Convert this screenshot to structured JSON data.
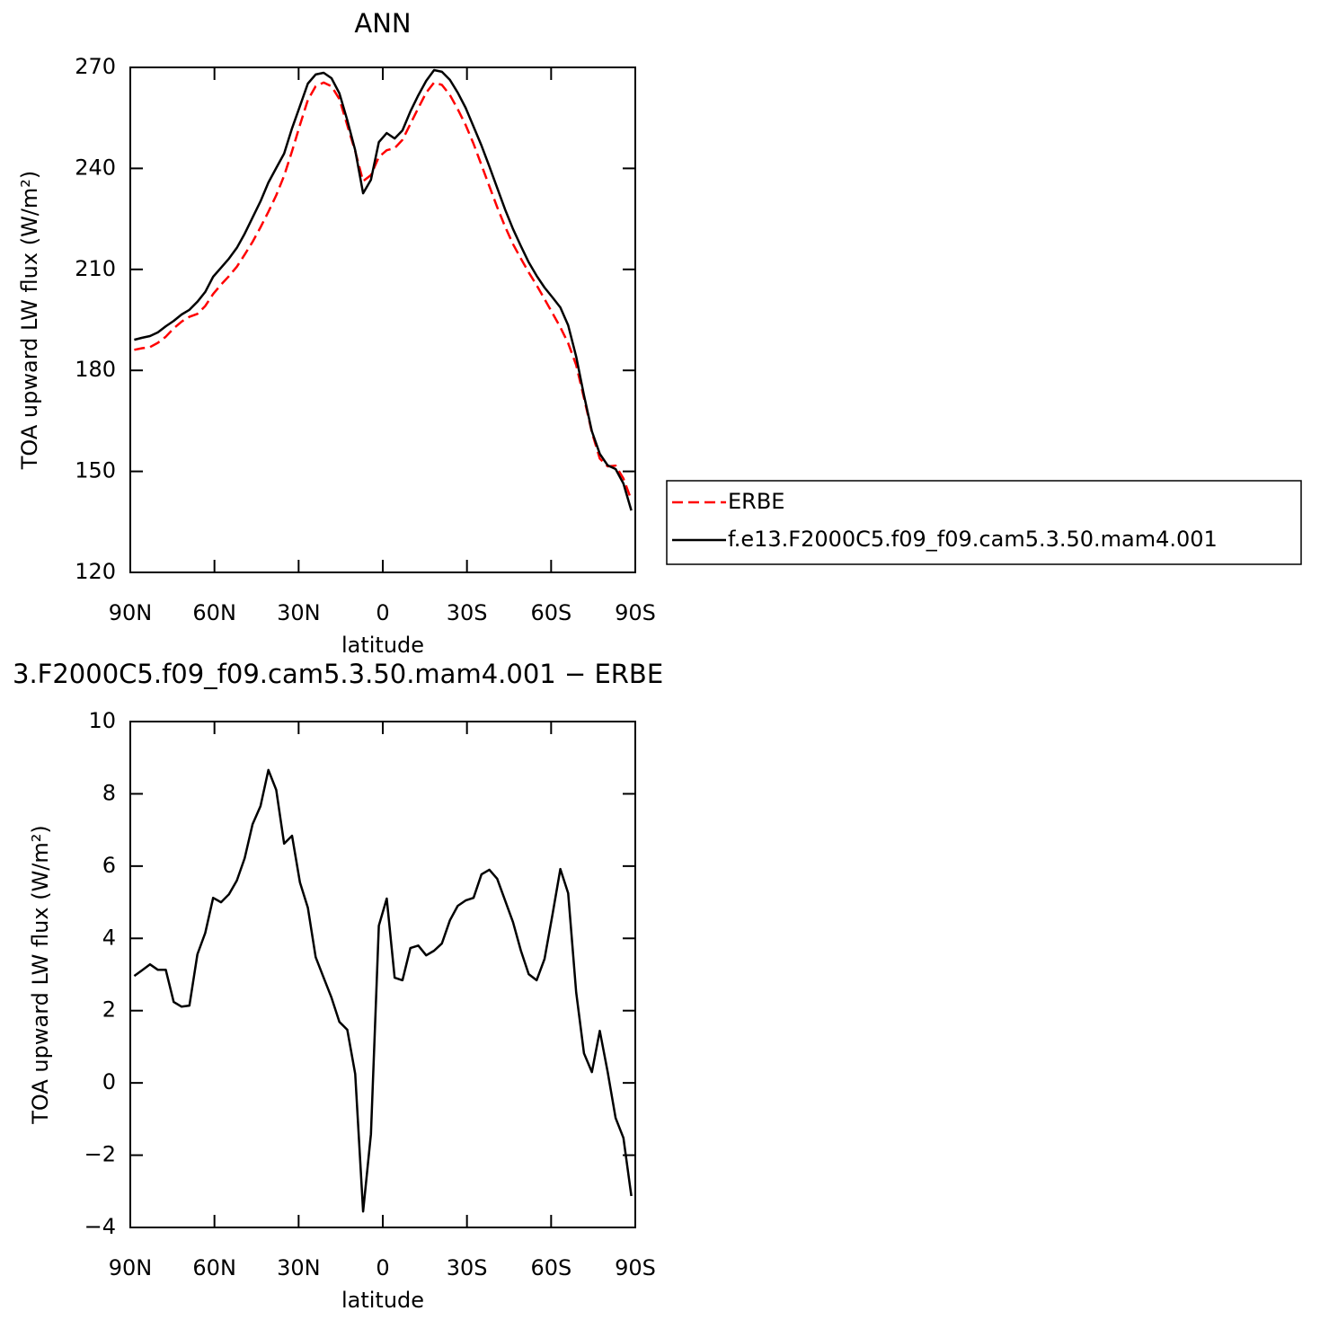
{
  "chart_data": [
    {
      "type": "line",
      "title": "ANN",
      "xlabel": "latitude",
      "ylabel": "TOA upward LW flux (W/m²)",
      "x": [
        88.59,
        85.78,
        82.97,
        80.16,
        77.34,
        74.53,
        71.72,
        68.91,
        66.09,
        63.28,
        60.47,
        57.66,
        54.84,
        52.03,
        49.22,
        46.41,
        43.59,
        40.78,
        37.97,
        35.16,
        32.34,
        29.53,
        26.72,
        23.91,
        21.09,
        18.28,
        15.47,
        12.66,
        9.84,
        7.03,
        4.22,
        1.41,
        -1.41,
        -4.22,
        -7.03,
        -9.84,
        -12.66,
        -15.47,
        -18.28,
        -21.09,
        -23.91,
        -26.72,
        -29.53,
        -32.34,
        -35.16,
        -37.97,
        -40.78,
        -43.59,
        -46.41,
        -49.22,
        -52.03,
        -54.84,
        -57.66,
        -60.47,
        -63.28,
        -66.09,
        -68.91,
        -71.72,
        -74.53,
        -77.34,
        -80.16,
        -82.97,
        -85.78,
        -88.59
      ],
      "series": [
        {
          "name": "ERBE",
          "color": "#ff0000",
          "dashed": true,
          "values": [
            186.1,
            186.6,
            186.9,
            188.2,
            190.0,
            192.5,
            194.5,
            195.9,
            196.8,
            199.1,
            202.7,
            205.5,
            208.0,
            210.8,
            214.4,
            218.2,
            222.5,
            227.1,
            232.0,
            237.8,
            245.1,
            252.9,
            260.3,
            264.4,
            265.5,
            264.4,
            260.6,
            252.8,
            245.1,
            236.2,
            238.0,
            243.4,
            245.4,
            246.0,
            248.5,
            253.2,
            257.9,
            262.5,
            265.5,
            264.8,
            261.8,
            257.6,
            252.9,
            247.3,
            241.0,
            234.7,
            228.5,
            222.7,
            217.5,
            213.2,
            209.1,
            205.3,
            201.2,
            197.0,
            192.8,
            188.1,
            181.6,
            171.8,
            161.6,
            153.8,
            151.5,
            151.7,
            147.9,
            141.5
          ]
        },
        {
          "name": "f.e13.F2000C5.f09_f09.cam5.3.50.mam4.001",
          "color": "#000000",
          "dashed": false,
          "values": [
            189.1,
            189.7,
            190.2,
            191.3,
            193.1,
            194.7,
            196.6,
            198.0,
            200.4,
            203.3,
            207.8,
            210.5,
            213.2,
            216.4,
            220.6,
            225.4,
            230.2,
            235.8,
            240.1,
            244.4,
            251.9,
            258.5,
            265.2,
            267.9,
            268.4,
            266.8,
            262.3,
            254.3,
            245.4,
            232.6,
            236.6,
            247.8,
            250.5,
            248.9,
            251.3,
            256.9,
            261.7,
            266.0,
            269.2,
            268.7,
            266.3,
            262.5,
            258.0,
            252.4,
            246.8,
            240.6,
            234.2,
            227.8,
            222.0,
            216.9,
            212.1,
            208.1,
            204.6,
            201.7,
            198.7,
            193.4,
            184.1,
            172.6,
            161.9,
            155.2,
            151.8,
            150.7,
            146.4,
            138.4
          ]
        }
      ],
      "xlim": [
        90,
        -90
      ],
      "xticks": [
        {
          "value": 90,
          "label": "90N"
        },
        {
          "value": 60,
          "label": "60N"
        },
        {
          "value": 30,
          "label": "30N"
        },
        0,
        {
          "value": -30,
          "label": "30S"
        },
        {
          "value": -60,
          "label": "60S"
        },
        {
          "value": -90,
          "label": "90S"
        }
      ],
      "ylim": [
        120,
        270
      ],
      "yticks": [
        120,
        150,
        180,
        210,
        240,
        270
      ],
      "legend": "right"
    },
    {
      "type": "line",
      "title": "3.F2000C5.f09_f09.cam5.3.50.mam4.001 − ERBE",
      "xlabel": "latitude",
      "ylabel": "TOA upward LW flux (W/m²)",
      "x": [
        88.59,
        85.78,
        82.97,
        80.16,
        77.34,
        74.53,
        71.72,
        68.91,
        66.09,
        63.28,
        60.47,
        57.66,
        54.84,
        52.03,
        49.22,
        46.41,
        43.59,
        40.78,
        37.97,
        35.16,
        32.34,
        29.53,
        26.72,
        23.91,
        21.09,
        18.28,
        15.47,
        12.66,
        9.84,
        7.03,
        4.22,
        1.41,
        -1.41,
        -4.22,
        -7.03,
        -9.84,
        -12.66,
        -15.47,
        -18.28,
        -21.09,
        -23.91,
        -26.72,
        -29.53,
        -32.34,
        -35.16,
        -37.97,
        -40.78,
        -43.59,
        -46.41,
        -49.22,
        -52.03,
        -54.84,
        -57.66,
        -60.47,
        -63.28,
        -66.09,
        -68.91,
        -71.72,
        -74.53,
        -77.34,
        -80.16,
        -82.97,
        -85.78,
        -88.59
      ],
      "color": "#000000",
      "values": [
        2.96,
        3.12,
        3.28,
        3.13,
        3.13,
        2.24,
        2.11,
        2.14,
        3.56,
        4.15,
        5.12,
        5.0,
        5.22,
        5.6,
        6.22,
        7.16,
        7.66,
        8.66,
        8.11,
        6.62,
        6.84,
        5.55,
        4.85,
        3.48,
        2.91,
        2.36,
        1.69,
        1.47,
        0.25,
        -3.56,
        -1.42,
        4.35,
        5.1,
        2.91,
        2.84,
        3.73,
        3.8,
        3.53,
        3.66,
        3.86,
        4.5,
        4.9,
        5.05,
        5.12,
        5.77,
        5.9,
        5.65,
        5.05,
        4.45,
        3.66,
        3.01,
        2.84,
        3.43,
        4.65,
        5.92,
        5.25,
        2.51,
        0.82,
        0.3,
        1.44,
        0.3,
        -0.97,
        -1.52,
        -3.13
      ],
      "xlim": [
        90,
        -90
      ],
      "xticks": [
        {
          "value": 90,
          "label": "90N"
        },
        {
          "value": 60,
          "label": "60N"
        },
        {
          "value": 30,
          "label": "30N"
        },
        0,
        {
          "value": -30,
          "label": "30S"
        },
        {
          "value": -60,
          "label": "60S"
        },
        {
          "value": -90,
          "label": "90S"
        }
      ],
      "ylim": [
        -4,
        10
      ],
      "yticks": [
        {
          "value": -4,
          "label": "−4"
        },
        {
          "value": -2,
          "label": "−2"
        },
        0,
        2,
        4,
        6,
        8,
        10
      ]
    }
  ]
}
